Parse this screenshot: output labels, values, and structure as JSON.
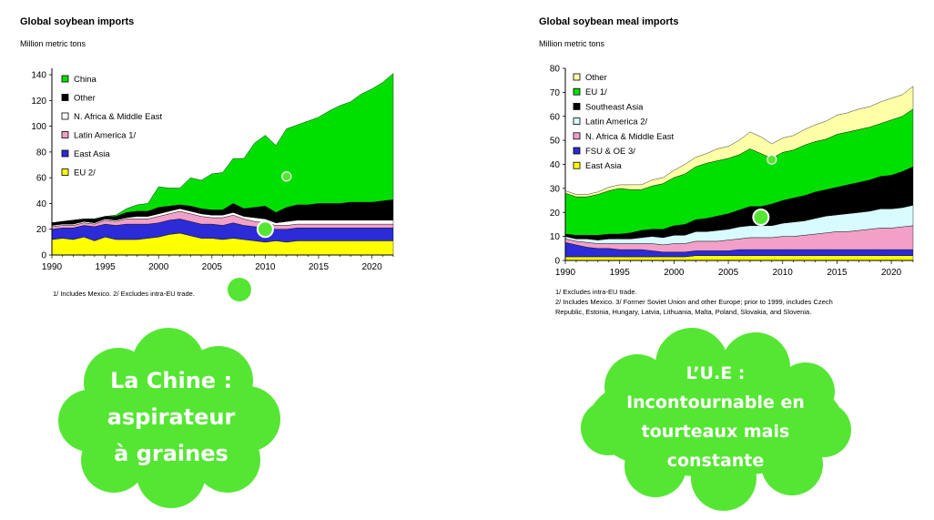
{
  "colors": {
    "green": "#00e000",
    "black": "#000000",
    "white": "#ffffff",
    "light_cyan": "#d8fbff",
    "pink": "#f2a0c8",
    "blue": "#2b2bd8",
    "yellow": "#ffff00",
    "light_yellow": "#ffffa8",
    "cloud": "#55e633",
    "marker": "#55e633"
  },
  "chart_data": [
    {
      "type": "area",
      "title": "Global soybean imports",
      "ylabel": "Million metric tons",
      "ylim": [
        0,
        145
      ],
      "yticks": [
        0,
        20,
        40,
        60,
        80,
        100,
        120,
        140
      ],
      "xlim": [
        1990,
        2022
      ],
      "xticks": [
        1990,
        1995,
        2000,
        2005,
        2010,
        2015,
        2020
      ],
      "stacking": "cumulative",
      "x": [
        1990,
        1991,
        1992,
        1993,
        1994,
        1995,
        1996,
        1997,
        1998,
        1999,
        2000,
        2001,
        2002,
        2003,
        2004,
        2005,
        2006,
        2007,
        2008,
        2009,
        2010,
        2011,
        2012,
        2013,
        2014,
        2015,
        2016,
        2017,
        2018,
        2019,
        2020,
        2021,
        2022
      ],
      "series": [
        {
          "name": "EU 2/",
          "color": "#ffff00",
          "values": [
            12,
            13,
            12,
            14,
            11,
            14,
            12,
            12,
            12,
            13,
            14,
            16,
            17,
            15,
            13,
            13,
            12,
            13,
            12,
            11,
            10,
            11,
            10,
            11,
            11,
            11,
            11,
            11,
            11,
            11,
            11,
            11,
            11
          ]
        },
        {
          "name": "East Asia",
          "color": "#2b2bd8",
          "values": [
            8,
            8,
            9,
            9,
            11,
            10,
            11,
            12,
            12,
            11,
            11,
            11,
            11,
            11,
            11,
            11,
            11,
            12,
            11,
            11,
            11,
            9,
            10,
            10,
            10,
            10,
            10,
            10,
            10,
            10,
            10,
            10,
            10
          ]
        },
        {
          "name": "Latin America 1/",
          "color": "#f2a0c8",
          "values": [
            2,
            2,
            2,
            2,
            2,
            3,
            3,
            4,
            4,
            4,
            5,
            5,
            6,
            6,
            6,
            5,
            6,
            6,
            5,
            4,
            4,
            3,
            3,
            3,
            3,
            3,
            3,
            3,
            3,
            3,
            3,
            3,
            3
          ]
        },
        {
          "name": "N. Africa & Middle East",
          "color": "#ffffff",
          "values": [
            1,
            1,
            1,
            1,
            1,
            1,
            1,
            1,
            2,
            2,
            2,
            2,
            2,
            2,
            2,
            2,
            2,
            2,
            2,
            3,
            3,
            2,
            3,
            3,
            3,
            3,
            3,
            3,
            3,
            3,
            3,
            3,
            3
          ]
        },
        {
          "name": "Other",
          "color": "#000000",
          "values": [
            2,
            2,
            3,
            2,
            3,
            2,
            3,
            4,
            4,
            4,
            5,
            4,
            3,
            4,
            4,
            4,
            4,
            7,
            6,
            8,
            10,
            8,
            11,
            12,
            12,
            13,
            13,
            13,
            14,
            14,
            14,
            15,
            16
          ]
        },
        {
          "name": "China",
          "color": "#00e000",
          "values": [
            0,
            0,
            0,
            0,
            0,
            0,
            1,
            3,
            5,
            6,
            16,
            14,
            13,
            22,
            22,
            28,
            29,
            35,
            39,
            50,
            55,
            52,
            61,
            62,
            65,
            67,
            72,
            76,
            78,
            84,
            88,
            92,
            98
          ]
        }
      ],
      "legend": "top-left",
      "footnote": "1/ Includes Mexico.  2/ Excludes intra-EU trade.",
      "markers": [
        {
          "x": 2012,
          "y": 61,
          "style": "small"
        },
        {
          "x": 2010,
          "y": 20,
          "style": "large"
        }
      ]
    },
    {
      "type": "area",
      "title": "Global soybean meal imports",
      "ylabel": "Million metric tons",
      "ylim": [
        0,
        80
      ],
      "yticks": [
        0,
        10,
        20,
        30,
        40,
        50,
        60,
        70,
        80
      ],
      "xlim": [
        1990,
        2022
      ],
      "xticks": [
        1990,
        1995,
        2000,
        2005,
        2010,
        2015,
        2020
      ],
      "stacking": "cumulative",
      "x": [
        1990,
        1991,
        1992,
        1993,
        1994,
        1995,
        1996,
        1997,
        1998,
        1999,
        2000,
        2001,
        2002,
        2003,
        2004,
        2005,
        2006,
        2007,
        2008,
        2009,
        2010,
        2011,
        2012,
        2013,
        2014,
        2015,
        2016,
        2017,
        2018,
        2019,
        2020,
        2021,
        2022
      ],
      "series": [
        {
          "name": "East Asia",
          "color": "#ffff00",
          "values": [
            1.5,
            1.5,
            1.5,
            1.5,
            1.5,
            1.5,
            1.5,
            1.5,
            1.5,
            1.5,
            1.5,
            1.5,
            2,
            2,
            2,
            2,
            2,
            2,
            2,
            2,
            2,
            2,
            2,
            2,
            2,
            2,
            2,
            2,
            2,
            2,
            2,
            2,
            2
          ]
        },
        {
          "name": "FSU & OE 3/",
          "color": "#2b2bd8",
          "values": [
            6,
            5,
            4,
            3.5,
            3.5,
            3,
            3,
            3,
            2.5,
            2,
            2,
            2,
            2,
            2,
            2,
            2,
            2.5,
            2.5,
            2.5,
            2.5,
            2.5,
            2.5,
            2.5,
            2.5,
            2.5,
            2.5,
            2.5,
            2.5,
            2.5,
            2.5,
            2.5,
            2.5,
            2.5
          ]
        },
        {
          "name": "N. Africa & Middle East",
          "color": "#f2a0c8",
          "values": [
            1.5,
            1.5,
            2,
            2,
            2,
            2.5,
            2.5,
            2.5,
            3,
            3,
            3.5,
            3.5,
            4,
            4,
            4,
            4.5,
            4.5,
            5,
            5,
            5,
            5.5,
            5.5,
            6,
            6.5,
            7,
            7.5,
            7.5,
            8,
            8.5,
            9,
            9,
            9.5,
            10
          ]
        },
        {
          "name": "Latin America 2/",
          "color": "#d8fbff",
          "values": [
            1,
            1,
            1.5,
            1.5,
            2,
            2,
            2,
            2.5,
            3,
            3,
            3.5,
            3.5,
            4,
            4,
            4.5,
            4.5,
            5,
            5,
            5,
            5,
            5.5,
            6,
            6,
            6.5,
            7,
            7,
            7.5,
            7.5,
            7.5,
            8,
            8,
            8,
            8.5
          ]
        },
        {
          "name": "Southeast Asia",
          "color": "#000000",
          "values": [
            1,
            1.5,
            1.5,
            2,
            2,
            2,
            2.5,
            3,
            3,
            3.5,
            4,
            4.5,
            5,
            5.5,
            6,
            6.5,
            7,
            8,
            8,
            9,
            9.5,
            10,
            10.5,
            11,
            11,
            11.5,
            12,
            12.5,
            13,
            13.5,
            14,
            15,
            16
          ]
        },
        {
          "name": "EU 1/",
          "color": "#00e000",
          "values": [
            17,
            16,
            16,
            17,
            18,
            19,
            18,
            17,
            18,
            19,
            20,
            21,
            22,
            23,
            23,
            23,
            23,
            24,
            22,
            19,
            20,
            20,
            21,
            21,
            21,
            22,
            22,
            22,
            22,
            22,
            23,
            23,
            24
          ]
        },
        {
          "name": "Other",
          "color": "#ffffa8",
          "values": [
            1,
            1,
            1,
            1,
            1.5,
            1.5,
            2,
            2,
            2.5,
            2.5,
            3,
            4,
            4,
            4,
            5,
            5,
            6,
            7,
            7,
            6,
            6,
            6,
            6.5,
            7,
            7.5,
            8,
            8,
            8.5,
            8.5,
            9,
            9,
            9,
            9.5
          ]
        }
      ],
      "legend": "top-left",
      "footnote_lines": [
        "1/ Excludes intra-EU trade.",
        "2/ Includes Mexico.  3/ Former Soviet Union and other Europe; prior to 1999, includes Czech",
        "Republic, Estonia, Hungary, Latvia, Lithuania, Malta, Poland, Slovakia, and Slovenia."
      ],
      "markers": [
        {
          "x": 2009,
          "y": 42,
          "style": "small"
        },
        {
          "x": 2008,
          "y": 18,
          "style": "large"
        }
      ]
    }
  ],
  "annotations": {
    "left_cloud": [
      "La Chine :",
      "aspirateur",
      "à graines"
    ],
    "right_cloud": [
      "L’U.E :",
      "Incontournable en",
      "tourteaux mais",
      "constante"
    ]
  },
  "icons": [
    "cloud-shape-left",
    "cloud-shape-right",
    "green-dot-marker"
  ]
}
